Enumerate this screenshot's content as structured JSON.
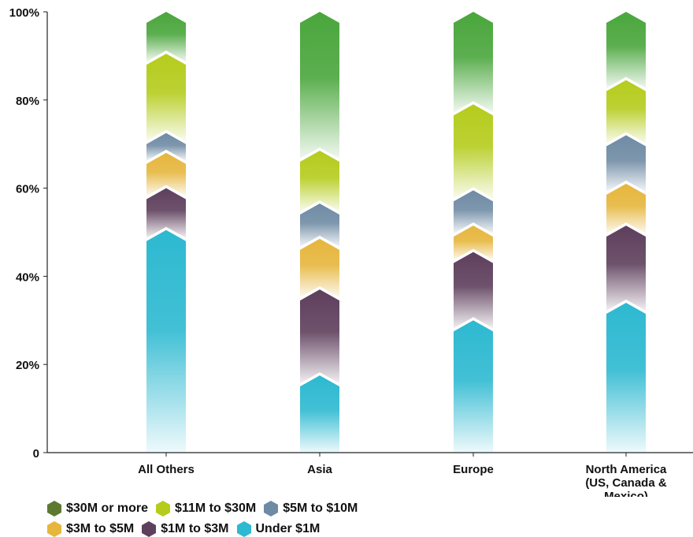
{
  "chart_data": {
    "type": "bar",
    "stacked": true,
    "title": "",
    "xlabel": "",
    "ylabel": "",
    "ylim": [
      0,
      100
    ],
    "yticks": [
      "0",
      "20%",
      "40%",
      "60%",
      "80%",
      "100%"
    ],
    "categories": [
      [
        "All Others"
      ],
      [
        "Asia"
      ],
      [
        "Europe"
      ],
      [
        "North America",
        "(US, Canada &",
        "Mexico)"
      ]
    ],
    "series": [
      {
        "name": "Under $1M",
        "color": "#2db9d1",
        "values": [
          50.5,
          17.5,
          30,
          34
        ]
      },
      {
        "name": "$1M to $3M",
        "color": "#5e3f5c",
        "values": [
          9.5,
          19.5,
          15.5,
          17.5
        ]
      },
      {
        "name": "$3M to $5M",
        "color": "#e6b63d",
        "values": [
          8,
          11.5,
          6,
          9.5
        ]
      },
      {
        "name": "$5M to $10M",
        "color": "#6f8ba4",
        "values": [
          4.5,
          8,
          8,
          11
        ]
      },
      {
        "name": "$11M to $30M",
        "color": "#b5cc1d",
        "values": [
          18,
          12,
          19.5,
          12.5
        ]
      },
      {
        "name": "$30M or more",
        "color": "#4aa63c",
        "values": [
          9.5,
          31.5,
          21,
          15.5
        ]
      }
    ],
    "legend": {
      "placement": "bottom-left",
      "rows": [
        [
          "$30M or more",
          "$11M to $30M",
          "$5M to $10M"
        ],
        [
          "$3M to $5M",
          "$1M to $3M",
          "Under $1M"
        ]
      ],
      "swatch_colors": {
        "$30M or more": "#5d7a30",
        "$11M to $30M": "#b5cc1d",
        "$5M to $10M": "#6f8ba4",
        "$3M to $5M": "#e6b63d",
        "$1M to $3M": "#5e3f5c",
        "Under $1M": "#2db9d1"
      }
    },
    "grid": false
  }
}
